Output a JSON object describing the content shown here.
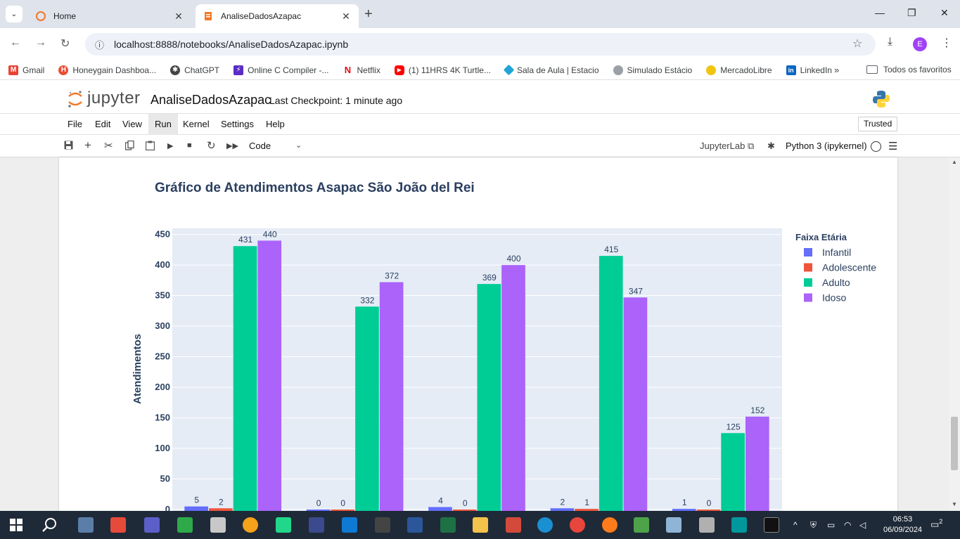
{
  "browser": {
    "tabs": [
      {
        "title": "Home",
        "active": false,
        "icon": "jupyter-icon"
      },
      {
        "title": "AnaliseDadosAzapac",
        "active": true,
        "icon": "notebook-icon"
      }
    ],
    "url": "localhost:8888/notebooks/AnaliseDadosAzapac.ipynb",
    "profile_initial": "E",
    "bookmarks": [
      {
        "label": "Gmail",
        "icon": "gmail-icon",
        "color": "#ea4335"
      },
      {
        "label": "Honeygain Dashboa...",
        "icon": "honeygain-icon",
        "color": "#e94f37"
      },
      {
        "label": "ChatGPT",
        "icon": "chatgpt-icon",
        "color": "#444444"
      },
      {
        "label": "Online C Compiler -...",
        "icon": "compiler-icon",
        "color": "#5a2dc4"
      },
      {
        "label": "Netflix",
        "icon": "netflix-icon",
        "color": "#e50914"
      },
      {
        "label": "(1) 11HRS 4K Turtle...",
        "icon": "youtube-icon",
        "color": "#ff0000"
      },
      {
        "label": "Sala de Aula | Estacio",
        "icon": "estacio-icon",
        "color": "#21a5d8"
      },
      {
        "label": "Simulado Estácio",
        "icon": "simulado-icon",
        "color": "#9aa0a6"
      },
      {
        "label": "MercadoLibre",
        "icon": "mercadolibre-icon",
        "color": "#f1c40f"
      },
      {
        "label": "LinkedIn",
        "icon": "linkedin-icon",
        "color": "#0a66c2"
      }
    ],
    "all_bookmarks": "Todos os favoritos"
  },
  "jupyter": {
    "brand": "jupyter",
    "notebook_name": "AnaliseDadosAzapac",
    "checkpoint": "Last Checkpoint: 1 minute ago",
    "menu": [
      "File",
      "Edit",
      "View",
      "Run",
      "Kernel",
      "Settings",
      "Help"
    ],
    "highlighted_menu": "Run",
    "trusted": "Trusted",
    "cell_type": "Code",
    "jupyterlab_link": "JupyterLab",
    "kernel": "Python 3 (ipykernel)"
  },
  "chart_data": {
    "type": "bar",
    "title": "Gráfico de Atendimentos Asapac São João del Rei",
    "ylabel": "Atendimentos",
    "xlabel": "",
    "ylim": [
      0,
      460
    ],
    "yticks": [
      0,
      50,
      100,
      150,
      200,
      250,
      300,
      350,
      400,
      450
    ],
    "grid": true,
    "legend_title": "Faixa Etária",
    "legend_position": "right",
    "series": [
      {
        "name": "Infantil",
        "color": "#636efa",
        "values": [
          5,
          0,
          4,
          2,
          1
        ]
      },
      {
        "name": "Adolescente",
        "color": "#ef553b",
        "values": [
          2,
          0,
          0,
          1,
          0
        ]
      },
      {
        "name": "Adulto",
        "color": "#00cc96",
        "values": [
          431,
          332,
          369,
          415,
          125
        ]
      },
      {
        "name": "Idoso",
        "color": "#ab63fa",
        "values": [
          440,
          372,
          400,
          347,
          152
        ]
      }
    ],
    "group_count": 5
  },
  "taskbar": {
    "time": "06:53",
    "date": "06/09/2024",
    "notifications": "2"
  }
}
